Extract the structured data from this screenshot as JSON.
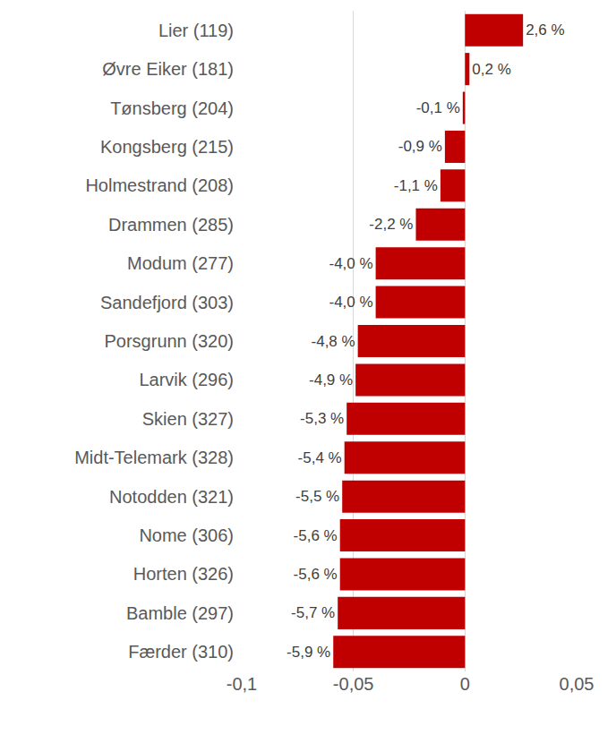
{
  "chart_data": {
    "type": "bar",
    "orientation": "horizontal",
    "categories": [
      "Lier (119)",
      "Øvre Eiker (181)",
      "Tønsberg (204)",
      "Kongsberg (215)",
      "Holmestrand (208)",
      "Drammen (285)",
      "Modum (277)",
      "Sandefjord (303)",
      "Porsgrunn (320)",
      "Larvik (296)",
      "Skien (327)",
      "Midt-Telemark (328)",
      "Notodden (321)",
      "Nome (306)",
      "Horten (326)",
      "Bamble (297)",
      "Færder (310)"
    ],
    "values": [
      0.026,
      0.002,
      -0.001,
      -0.009,
      -0.011,
      -0.022,
      -0.04,
      -0.04,
      -0.048,
      -0.049,
      -0.053,
      -0.054,
      -0.055,
      -0.056,
      -0.056,
      -0.057,
      -0.059
    ],
    "value_labels": [
      "2,6 %",
      "0,2 %",
      "-0,1 %",
      "-0,9 %",
      "-1,1 %",
      "-2,2 %",
      "-4,0 %",
      "-4,0 %",
      "-4,8 %",
      "-4,9 %",
      "-5,3 %",
      "-5,4 %",
      "-5,5 %",
      "-5,6 %",
      "-5,6 %",
      "-5,7 %",
      "-5,9 %"
    ],
    "color": "#c00000",
    "xlim": [
      -0.1,
      0.05
    ],
    "xticks": [
      {
        "value": -0.1,
        "label": "-0,1"
      },
      {
        "value": -0.05,
        "label": "-0,05"
      },
      0,
      {
        "value": 0.05,
        "label": "0,05"
      }
    ],
    "grid": true,
    "data_labels": true
  }
}
